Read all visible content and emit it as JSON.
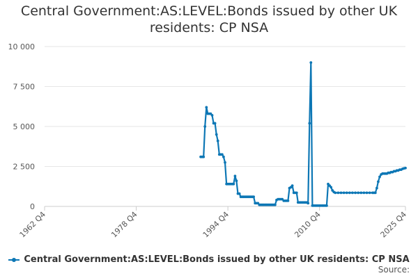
{
  "chart_data": {
    "type": "line",
    "title_lines": [
      "Central Government:AS:LEVEL:Bonds issued by other UK",
      "residents: CP NSA"
    ],
    "xlabel": "",
    "ylabel": "",
    "x_tick_labels": [
      "1962 Q4",
      "1978 Q4",
      "1994 Q4",
      "2010 Q4",
      "2025 Q4"
    ],
    "x_tick_years": [
      1962.75,
      1978.75,
      1994.75,
      2010.75,
      2025.75
    ],
    "x_range": [
      1962.75,
      2025.75
    ],
    "y_ticks": [
      0,
      2500,
      5000,
      7500,
      10000
    ],
    "y_tick_labels": [
      "0",
      "2 500",
      "5 000",
      "7 500",
      "10 000"
    ],
    "ylim": [
      0,
      10000
    ],
    "grid": "horizontal",
    "legend_position": "bottom",
    "series": [
      {
        "name": "Central Government:AS:LEVEL:Bonds issued by other UK residents: CP NSA",
        "color": "#0d77b5",
        "points": [
          [
            1990.0,
            3100
          ],
          [
            1990.25,
            3100
          ],
          [
            1990.5,
            3100
          ],
          [
            1990.75,
            5000
          ],
          [
            1991.0,
            6200
          ],
          [
            1991.25,
            5800
          ],
          [
            1991.5,
            5800
          ],
          [
            1991.75,
            5800
          ],
          [
            1992.0,
            5700
          ],
          [
            1992.25,
            5200
          ],
          [
            1992.5,
            5200
          ],
          [
            1992.75,
            4500
          ],
          [
            1993.0,
            4100
          ],
          [
            1993.25,
            3250
          ],
          [
            1993.5,
            3250
          ],
          [
            1993.75,
            3250
          ],
          [
            1994.0,
            3100
          ],
          [
            1994.25,
            2750
          ],
          [
            1994.5,
            1400
          ],
          [
            1994.75,
            1400
          ],
          [
            1995.0,
            1400
          ],
          [
            1995.25,
            1400
          ],
          [
            1995.5,
            1400
          ],
          [
            1995.75,
            1400
          ],
          [
            1996.0,
            1900
          ],
          [
            1996.25,
            1600
          ],
          [
            1996.5,
            800
          ],
          [
            1996.75,
            800
          ],
          [
            1997.0,
            600
          ],
          [
            1997.25,
            600
          ],
          [
            1997.5,
            600
          ],
          [
            1997.75,
            600
          ],
          [
            1998.0,
            600
          ],
          [
            1998.25,
            600
          ],
          [
            1998.5,
            600
          ],
          [
            1998.75,
            600
          ],
          [
            1999.0,
            600
          ],
          [
            1999.25,
            600
          ],
          [
            1999.5,
            200
          ],
          [
            1999.75,
            200
          ],
          [
            2000.0,
            200
          ],
          [
            2000.25,
            100
          ],
          [
            2000.5,
            100
          ],
          [
            2000.75,
            100
          ],
          [
            2001.0,
            100
          ],
          [
            2001.25,
            100
          ],
          [
            2001.5,
            100
          ],
          [
            2001.75,
            100
          ],
          [
            2002.0,
            100
          ],
          [
            2002.25,
            100
          ],
          [
            2002.5,
            100
          ],
          [
            2002.75,
            100
          ],
          [
            2003.0,
            100
          ],
          [
            2003.25,
            400
          ],
          [
            2003.5,
            450
          ],
          [
            2003.75,
            450
          ],
          [
            2004.0,
            450
          ],
          [
            2004.25,
            450
          ],
          [
            2004.5,
            350
          ],
          [
            2004.75,
            350
          ],
          [
            2005.0,
            350
          ],
          [
            2005.25,
            350
          ],
          [
            2005.5,
            1150
          ],
          [
            2005.75,
            1200
          ],
          [
            2006.0,
            1300
          ],
          [
            2006.25,
            850
          ],
          [
            2006.5,
            850
          ],
          [
            2006.75,
            850
          ],
          [
            2007.0,
            250
          ],
          [
            2007.25,
            250
          ],
          [
            2007.5,
            250
          ],
          [
            2007.75,
            250
          ],
          [
            2008.0,
            250
          ],
          [
            2008.25,
            250
          ],
          [
            2008.5,
            250
          ],
          [
            2008.75,
            200
          ],
          [
            2009.0,
            5200
          ],
          [
            2009.25,
            9000
          ],
          [
            2009.5,
            50
          ],
          [
            2009.75,
            50
          ],
          [
            2010.0,
            50
          ],
          [
            2010.25,
            50
          ],
          [
            2010.5,
            50
          ],
          [
            2010.75,
            50
          ],
          [
            2011.0,
            50
          ],
          [
            2011.25,
            50
          ],
          [
            2011.5,
            50
          ],
          [
            2011.75,
            50
          ],
          [
            2012.0,
            50
          ],
          [
            2012.25,
            1400
          ],
          [
            2012.5,
            1300
          ],
          [
            2012.75,
            1200
          ],
          [
            2013.0,
            1000
          ],
          [
            2013.25,
            900
          ],
          [
            2013.5,
            850
          ],
          [
            2014.0,
            850
          ],
          [
            2014.5,
            850
          ],
          [
            2015.0,
            850
          ],
          [
            2015.5,
            850
          ],
          [
            2016.0,
            850
          ],
          [
            2016.5,
            850
          ],
          [
            2017.0,
            850
          ],
          [
            2017.5,
            850
          ],
          [
            2018.0,
            850
          ],
          [
            2018.5,
            850
          ],
          [
            2019.0,
            850
          ],
          [
            2019.5,
            850
          ],
          [
            2020.0,
            850
          ],
          [
            2020.25,
            850
          ],
          [
            2020.5,
            850
          ],
          [
            2020.75,
            1150
          ],
          [
            2021.0,
            1550
          ],
          [
            2021.25,
            1850
          ],
          [
            2021.5,
            2000
          ],
          [
            2021.75,
            2050
          ],
          [
            2022.0,
            2050
          ],
          [
            2022.25,
            2050
          ],
          [
            2022.5,
            2050
          ],
          [
            2022.75,
            2100
          ],
          [
            2023.0,
            2100
          ],
          [
            2023.25,
            2150
          ],
          [
            2023.5,
            2150
          ],
          [
            2023.75,
            2200
          ],
          [
            2024.0,
            2200
          ],
          [
            2024.25,
            2250
          ],
          [
            2024.5,
            2250
          ],
          [
            2024.75,
            2300
          ],
          [
            2025.0,
            2300
          ],
          [
            2025.25,
            2350
          ],
          [
            2025.5,
            2380
          ],
          [
            2025.75,
            2400
          ]
        ]
      }
    ]
  },
  "legend": {
    "label": "Central Government:AS:LEVEL:Bonds issued by other UK residents: CP NSA"
  },
  "footer": {
    "source_label": "Source:"
  }
}
